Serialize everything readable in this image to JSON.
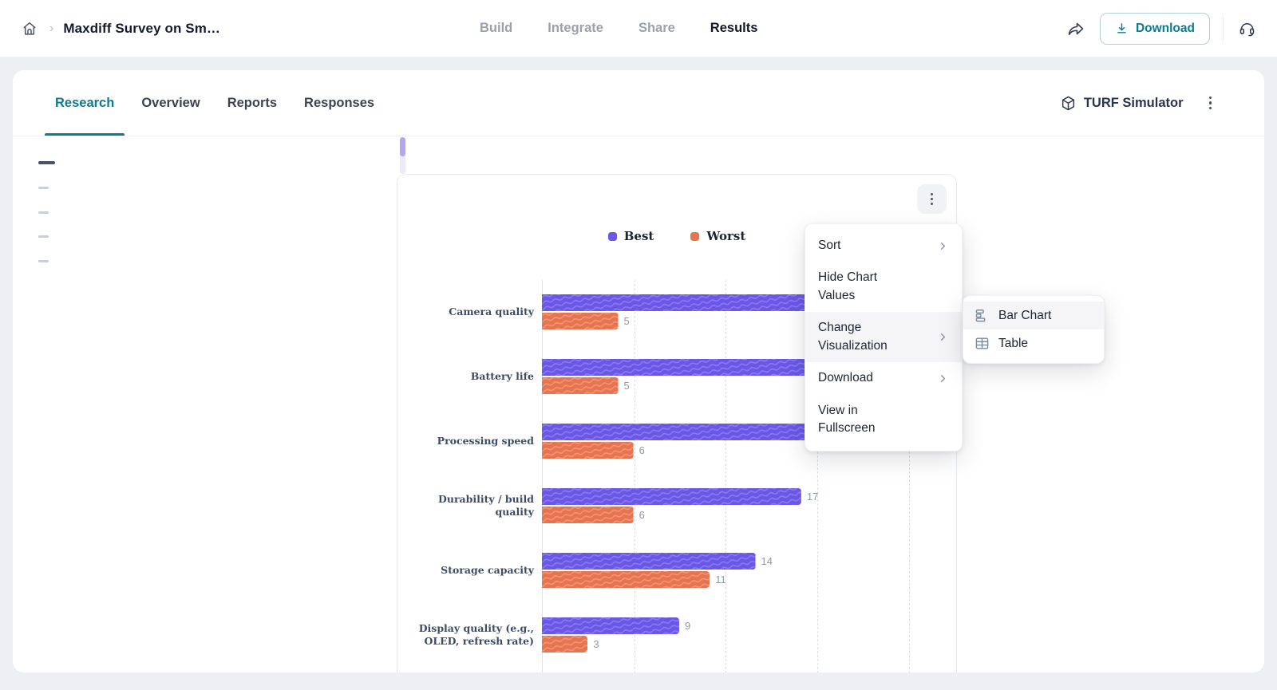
{
  "header": {
    "breadcrumb_title": "Maxdiff Survey on Sm…",
    "nav": [
      {
        "label": "Build",
        "active": false
      },
      {
        "label": "Integrate",
        "active": false
      },
      {
        "label": "Share",
        "active": false
      },
      {
        "label": "Results",
        "active": true
      }
    ],
    "download_button": "Download"
  },
  "tabs": [
    {
      "label": "Research",
      "active": true
    },
    {
      "label": "Overview",
      "active": false
    },
    {
      "label": "Reports",
      "active": false
    },
    {
      "label": "Responses",
      "active": false
    }
  ],
  "tabbar_right": {
    "turf_simulator_label": "TURF Simulator"
  },
  "chart_data": {
    "type": "bar",
    "orientation": "horizontal",
    "legend_position": "top",
    "grid": "dashed-vertical-gridlines",
    "x_axis": {
      "min": 0,
      "gridline_step": 6,
      "max_visible_gridline": 24
    },
    "categories": [
      "Camera quality",
      "Battery life",
      "Processing speed",
      "Durability / build quality",
      "Storage capacity",
      "Display quality (e.g., OLED, refresh rate)"
    ],
    "series": [
      {
        "name": "Best",
        "color": "#6A57E8",
        "values": [
          null,
          null,
          18,
          17,
          14,
          9
        ],
        "occluded_value_indexes": [
          0,
          1
        ]
      },
      {
        "name": "Worst",
        "color": "#E8744F",
        "values": [
          5,
          5,
          6,
          6,
          11,
          3
        ]
      }
    ]
  },
  "context_menu": {
    "items": [
      {
        "label": "Sort",
        "has_submenu": true,
        "highlighted": false
      },
      {
        "label": "Hide Chart Values",
        "has_submenu": false,
        "highlighted": false
      },
      {
        "label": "Change Visualization",
        "has_submenu": true,
        "highlighted": true
      },
      {
        "label": "Download",
        "has_submenu": true,
        "highlighted": false
      },
      {
        "label": "View in Fullscreen",
        "has_submenu": false,
        "highlighted": false
      }
    ]
  },
  "visualization_submenu": {
    "items": [
      {
        "label": "Bar Chart",
        "icon": "bar-chart-icon",
        "highlighted": true
      },
      {
        "label": "Table",
        "icon": "table-icon",
        "highlighted": false
      }
    ]
  },
  "colors": {
    "accent_teal": "#0B7C8F",
    "best_purple": "#6A57E8",
    "worst_orange": "#E8744F",
    "scrollbar_purple": "#B3A4F4"
  }
}
